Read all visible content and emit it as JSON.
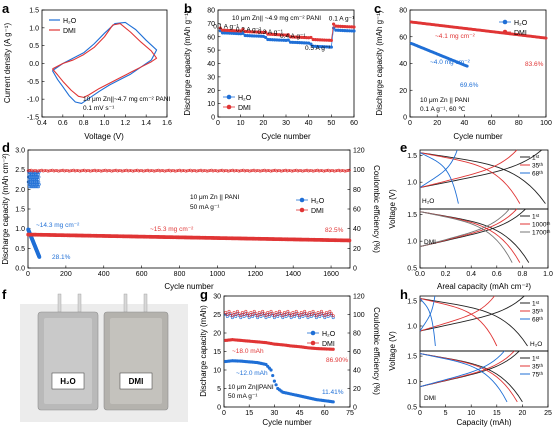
{
  "colors": {
    "h2o": "#1f6fd6",
    "dmi": "#e03535",
    "gray": "#555555",
    "pouch": "#b9b9b9"
  },
  "panels": {
    "a": "a",
    "b": "b",
    "c": "c",
    "d": "d",
    "e": "e",
    "f": "f",
    "g": "g",
    "h": "h"
  },
  "legend": {
    "h2o": "H₂O",
    "dmi": "DMI"
  },
  "chart_data": [
    {
      "panel": "a",
      "type": "line",
      "xlabel": "Voltage (V)",
      "ylabel": "Current density (A g⁻¹)",
      "xlim": [
        0.4,
        1.6
      ],
      "ylim": [
        -1.5,
        1.5
      ],
      "xticks": [
        "0.4",
        "0.6",
        "0.8",
        "1.0",
        "1.2",
        "1.4",
        "1.6"
      ],
      "yticks": [
        "-1.5",
        "-1.0",
        "-0.5",
        "0.0",
        "0.5",
        "1.0",
        "1.5"
      ],
      "annotation": [
        "10 μm Zn||~4.7 mg cm⁻² PANI",
        "0.1 mV s⁻¹"
      ],
      "legend_position": "top-left",
      "series": [
        {
          "name": "H₂O",
          "color": "#1f6fd6",
          "x": [
            0.5,
            0.6,
            0.7,
            0.8,
            0.9,
            1.0,
            1.1,
            1.2,
            1.3,
            1.4,
            1.5,
            1.45,
            1.35,
            1.25,
            1.15,
            1.05,
            0.95,
            0.85,
            0.78,
            0.72,
            0.66,
            0.6,
            0.55,
            0.5
          ],
          "y": [
            -0.2,
            0.0,
            0.15,
            0.3,
            0.55,
            0.85,
            1.12,
            1.15,
            0.95,
            0.65,
            0.38,
            0.1,
            -0.1,
            -0.3,
            -0.45,
            -0.6,
            -0.78,
            -0.98,
            -1.12,
            -1.08,
            -0.9,
            -0.65,
            -0.45,
            -0.2
          ]
        },
        {
          "name": "DMI",
          "color": "#e03535",
          "x": [
            0.5,
            0.6,
            0.7,
            0.8,
            0.9,
            1.0,
            1.08,
            1.15,
            1.25,
            1.35,
            1.45,
            1.5,
            1.45,
            1.35,
            1.25,
            1.15,
            1.05,
            0.95,
            0.85,
            0.8,
            0.75,
            0.68,
            0.6,
            0.55,
            0.5
          ],
          "y": [
            -0.15,
            0.0,
            0.1,
            0.25,
            0.45,
            0.75,
            1.08,
            1.12,
            0.88,
            0.6,
            0.35,
            0.15,
            0.05,
            -0.1,
            -0.25,
            -0.4,
            -0.55,
            -0.7,
            -0.88,
            -0.95,
            -0.92,
            -0.75,
            -0.5,
            -0.32,
            -0.15
          ]
        }
      ]
    },
    {
      "panel": "b",
      "type": "scatter",
      "xlabel": "Cycle number",
      "ylabel": "Discharge capacity (mAh g⁻¹)",
      "xlim": [
        0,
        60
      ],
      "ylim": [
        0,
        80
      ],
      "xticks": [
        "0",
        "10",
        "20",
        "30",
        "40",
        "50",
        "60"
      ],
      "yticks": [
        "0",
        "10",
        "20",
        "30",
        "40",
        "50",
        "60",
        "70",
        "80"
      ],
      "title": "10 μm Zn|| ~4.9 mg cm⁻² PANI",
      "rate_labels": [
        {
          "text": "0.1 A g⁻¹",
          "x": 3.5,
          "y": 66
        },
        {
          "text": "0.2 A g⁻¹",
          "x": 13.5,
          "y": 64
        },
        {
          "text": "0.3 A g⁻¹",
          "x": 23,
          "y": 62
        },
        {
          "text": "0.4 A g⁻¹",
          "x": 33,
          "y": 59
        },
        {
          "text": "0.5 A g⁻¹",
          "x": 44,
          "y": 50
        },
        {
          "text": "0.1 A g⁻¹",
          "x": 54.5,
          "y": 72
        }
      ],
      "legend_position": "bottom-left",
      "series": [
        {
          "name": "H₂O",
          "color": "#1f6fd6",
          "segments": [
            [
              1,
              10,
              63
            ],
            [
              11,
              20,
              61
            ],
            [
              21,
              30,
              58
            ],
            [
              31,
              40,
              56
            ],
            [
              41,
              50,
              53
            ],
            [
              51,
              60,
              65
            ]
          ]
        },
        {
          "name": "DMI",
          "color": "#e03535",
          "segments": [
            [
              1,
              10,
              65
            ],
            [
              11,
              20,
              64
            ],
            [
              21,
              30,
              62
            ],
            [
              31,
              40,
              60
            ],
            [
              41,
              50,
              58
            ],
            [
              51,
              60,
              68
            ]
          ]
        }
      ]
    },
    {
      "panel": "c",
      "type": "scatter",
      "xlabel": "Cycle number",
      "ylabel": "Discharge capacity (mAh g⁻¹)",
      "xlim": [
        0,
        100
      ],
      "ylim": [
        0,
        80
      ],
      "xticks": [
        "0",
        "20",
        "40",
        "60",
        "80",
        "100"
      ],
      "yticks": [
        "0",
        "20",
        "40",
        "60",
        "80"
      ],
      "annotation": [
        "10 μm Zn || PANI",
        "0.1 A g⁻¹, 60 ℃"
      ],
      "labels": {
        "dmi_loading": "~4.1 mg cm⁻²",
        "h2o_loading": "~4.0 mg cm⁻²",
        "h2o_retention": "69.6%",
        "dmi_retention": "83.6%"
      },
      "legend_position": "top-right",
      "series": [
        {
          "name": "H₂O",
          "color": "#1f6fd6",
          "x_range": [
            1,
            42
          ],
          "y_start": 55,
          "y_end": 38
        },
        {
          "name": "DMI",
          "color": "#e03535",
          "x_range": [
            1,
            100
          ],
          "y_start": 71,
          "y_end": 59
        }
      ]
    },
    {
      "panel": "d",
      "type": "scatter",
      "xlabel": "Cycle number",
      "ylabel": "Discharge capacity (mAh cm⁻²)",
      "y2label": "Coulombic efficiency (%)",
      "xlim": [
        0,
        1700
      ],
      "ylim": [
        0,
        3.0
      ],
      "y2lim": [
        0,
        120
      ],
      "xticks": [
        "0",
        "200",
        "400",
        "600",
        "800",
        "1000",
        "1200",
        "1400",
        "1600"
      ],
      "yticks": [
        "0.0",
        "0.5",
        "1.0",
        "1.5",
        "2.0",
        "2.5",
        "3.0"
      ],
      "y2ticks": [
        "0",
        "20",
        "40",
        "60",
        "80",
        "100",
        "120"
      ],
      "annotation": [
        "10 μm Zn || PANI",
        "50 mA g⁻¹"
      ],
      "labels": {
        "h2o_loading": "~14.3 mg cm⁻²",
        "dmi_loading": "~15.3 mg cm⁻²",
        "dmi_retention": "82.5%",
        "h2o_retention": "28.1%"
      },
      "legend_position": "right",
      "series": [
        {
          "name": "H₂O",
          "color": "#1f6fd6",
          "x_range": [
            1,
            60
          ],
          "y_start": 0.98,
          "y_end": 0.28
        },
        {
          "name": "DMI",
          "color": "#e03535",
          "x_range": [
            1,
            1700
          ],
          "y_start": 0.85,
          "y_end": 0.7
        },
        {
          "name": "H₂O CE",
          "color": "#1f6fd6",
          "axis": "y2",
          "x_range": [
            1,
            60
          ],
          "y": 90
        },
        {
          "name": "DMI CE",
          "color": "#e03535",
          "axis": "y2",
          "x_range": [
            1,
            1700
          ],
          "y": 99
        }
      ]
    },
    {
      "panel": "e",
      "type": "line",
      "xlabel": "Areal capacity (mAh cm⁻²)",
      "ylabel": "Voltage (V)",
      "xlim": [
        0.0,
        1.0
      ],
      "xticks": [
        "0.0",
        "0.2",
        "0.4",
        "0.6",
        "0.8",
        "1.0"
      ],
      "yticks_top": [
        "1.0",
        "1.5"
      ],
      "yticks_bottom": [
        "0.5",
        "1.0",
        "1.5"
      ],
      "upper": {
        "electrolyte": "H₂O",
        "curves": [
          {
            "label": "1ˢᵗ",
            "color": "#222222",
            "capacity": 0.98
          },
          {
            "label": "35ᵗʰ",
            "color": "#e03535",
            "capacity": 0.78
          },
          {
            "label": "68ᵗʰ",
            "color": "#1f6fd6",
            "capacity": 0.3
          }
        ]
      },
      "lower": {
        "electrolyte": "DMI",
        "curves": [
          {
            "label": "1ˢᵗ",
            "color": "#222222",
            "capacity": 0.85
          },
          {
            "label": "1000ᵗʰ",
            "color": "#e03535",
            "capacity": 0.78
          },
          {
            "label": "1700ᵗʰ",
            "color": "#777777",
            "capacity": 0.72
          }
        ]
      }
    },
    {
      "panel": "f",
      "type": "photo",
      "labels": {
        "h2o": "H₂O",
        "dmi": "DMI"
      }
    },
    {
      "panel": "g",
      "type": "scatter",
      "xlabel": "Cycle number",
      "ylabel": "Discharge capacity (mAh)",
      "y2label": "Coulombic efficiency (%)",
      "xlim": [
        0,
        75
      ],
      "ylim": [
        0,
        30
      ],
      "y2lim": [
        0,
        120
      ],
      "xticks": [
        "0",
        "15",
        "30",
        "45",
        "60",
        "75"
      ],
      "yticks": [
        "0",
        "5",
        "10",
        "15",
        "20",
        "25",
        "30"
      ],
      "y2ticks": [
        "0",
        "20",
        "40",
        "60",
        "80",
        "100",
        "120"
      ],
      "annotation": [
        "10 μm Zn||PANI",
        "50 mA g⁻¹"
      ],
      "labels": {
        "dmi_capacity": "~18.0 mAh",
        "h2o_capacity": "~12.0 mAh",
        "dmi_retention": "86.90%",
        "h2o_retention": "11.41%"
      },
      "legend_position": "top-right",
      "series": [
        {
          "name": "H₂O",
          "color": "#1f6fd6",
          "x": [
            1,
            5,
            10,
            15,
            20,
            25,
            28,
            30,
            32,
            35,
            40,
            45,
            50,
            55,
            60,
            65
          ],
          "y": [
            12.3,
            12.5,
            12.4,
            12.2,
            12.0,
            11.5,
            10.0,
            7.0,
            5.0,
            4.0,
            3.5,
            3.0,
            2.5,
            2.0,
            1.7,
            1.4
          ]
        },
        {
          "name": "DMI",
          "color": "#e03535",
          "x": [
            1,
            5,
            10,
            15,
            20,
            25,
            30,
            35,
            40,
            45,
            50,
            55,
            60,
            65
          ],
          "y": [
            18.0,
            18.2,
            18.0,
            17.8,
            17.6,
            17.4,
            17.0,
            16.8,
            16.5,
            16.3,
            16.0,
            15.8,
            15.7,
            15.6
          ]
        },
        {
          "name": "H₂O CE",
          "color": "#1f6fd6",
          "axis": "y2",
          "x_range": [
            1,
            65
          ],
          "y": 99
        },
        {
          "name": "DMI CE",
          "color": "#e03535",
          "axis": "y2",
          "x_range": [
            1,
            65
          ],
          "y": 101
        }
      ]
    },
    {
      "panel": "h",
      "type": "line",
      "xlabel": "Capacity (mAh)",
      "ylabel": "Voltage (V)",
      "xlim": [
        0,
        25
      ],
      "xticks": [
        "0",
        "5",
        "10",
        "15",
        "20",
        "25"
      ],
      "yticks_top": [
        "1.0",
        "1.5"
      ],
      "yticks_bottom": [
        "0.5",
        "1.0",
        "1.5"
      ],
      "upper": {
        "electrolyte": "H₂O",
        "curves": [
          {
            "label": "1ˢᵗ",
            "color": "#222222",
            "capacity": 21
          },
          {
            "label": "35ᵗʰ",
            "color": "#e03535",
            "capacity": 15
          },
          {
            "label": "68ᵗʰ",
            "color": "#1f6fd6",
            "capacity": 3
          }
        ]
      },
      "lower": {
        "electrolyte": "DMI",
        "curves": [
          {
            "label": "1ˢᵗ",
            "color": "#222222",
            "capacity": 20
          },
          {
            "label": "35ᵗʰ",
            "color": "#e03535",
            "capacity": 19
          },
          {
            "label": "75ᵗʰ",
            "color": "#1f6fd6",
            "capacity": 17
          }
        ]
      }
    }
  ]
}
